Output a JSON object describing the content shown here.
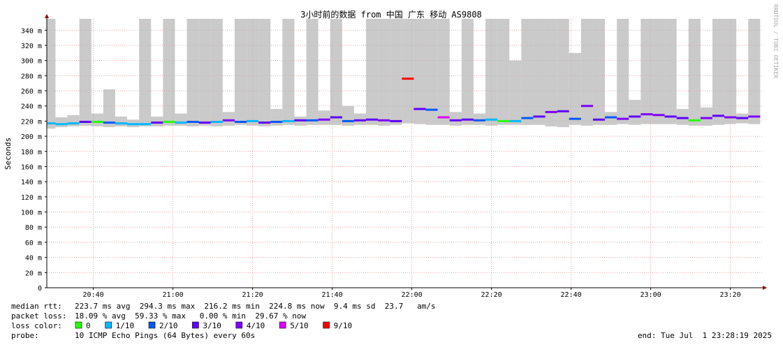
{
  "chart_data": {
    "type": "smoke",
    "title": "3小时前的数据 from 中国 广东 移动 AS9808",
    "y_label": "Seconds",
    "watermark": "RRDTOOL / TOBI OETIKER",
    "xlim": [
      "20:28:19",
      "23:28:19"
    ],
    "xticks": [
      "20:40",
      "21:00",
      "21:20",
      "21:40",
      "22:00",
      "22:20",
      "22:40",
      "23:00",
      "23:20"
    ],
    "ylim": [
      0,
      0.355
    ],
    "yticks": [
      0,
      {
        "value": 0.02,
        "label": "20 m"
      },
      {
        "value": 0.04,
        "label": "40 m"
      },
      {
        "value": 0.06,
        "label": "60 m"
      },
      {
        "value": 0.08,
        "label": "80 m"
      },
      {
        "value": 0.1,
        "label": "100 m"
      },
      {
        "value": 0.12,
        "label": "120 m"
      },
      {
        "value": 0.14,
        "label": "140 m"
      },
      {
        "value": 0.16,
        "label": "160 m"
      },
      {
        "value": 0.18,
        "label": "180 m"
      },
      {
        "value": 0.2,
        "label": "200 m"
      },
      {
        "value": 0.22,
        "label": "220 m"
      },
      {
        "value": 0.24,
        "label": "240 m"
      },
      {
        "value": 0.26,
        "label": "260 m"
      },
      {
        "value": 0.28,
        "label": "280 m"
      },
      {
        "value": 0.3,
        "label": "300 m"
      },
      {
        "value": 0.32,
        "label": "320 m"
      },
      {
        "value": 0.34,
        "label": "340 m"
      }
    ],
    "grid": true,
    "smoke_color": "#b8b8b8",
    "x": [
      "20:29",
      "20:32",
      "20:35",
      "20:38",
      "20:41",
      "20:44",
      "20:47",
      "20:50",
      "20:53",
      "20:56",
      "20:59",
      "21:02",
      "21:05",
      "21:08",
      "21:11",
      "21:14",
      "21:17",
      "21:20",
      "21:23",
      "21:26",
      "21:29",
      "21:32",
      "21:35",
      "21:38",
      "21:41",
      "21:44",
      "21:47",
      "21:50",
      "21:53",
      "21:56",
      "21:59",
      "22:02",
      "22:05",
      "22:08",
      "22:11",
      "22:14",
      "22:17",
      "22:20",
      "22:23",
      "22:26",
      "22:29",
      "22:32",
      "22:35",
      "22:38",
      "22:41",
      "22:44",
      "22:47",
      "22:50",
      "22:53",
      "22:56",
      "22:59",
      "23:02",
      "23:05",
      "23:08",
      "23:11",
      "23:14",
      "23:17",
      "23:20",
      "23:23",
      "23:26"
    ],
    "median": [
      0.217,
      0.216,
      0.217,
      0.219,
      0.219,
      0.218,
      0.217,
      0.216,
      0.216,
      0.218,
      0.219,
      0.218,
      0.219,
      0.218,
      0.219,
      0.221,
      0.219,
      0.22,
      0.218,
      0.219,
      0.22,
      0.221,
      0.221,
      0.222,
      0.225,
      0.22,
      0.221,
      0.222,
      0.221,
      0.22,
      0.276,
      0.236,
      0.235,
      0.225,
      0.221,
      0.222,
      0.221,
      0.222,
      0.22,
      0.22,
      0.224,
      0.226,
      0.232,
      0.233,
      0.223,
      0.24,
      0.222,
      0.225,
      0.223,
      0.226,
      0.229,
      0.228,
      0.226,
      0.224,
      0.221,
      0.224,
      0.227,
      0.225,
      0.224,
      0.226
    ],
    "smoke_min": [
      0.21,
      0.212,
      0.213,
      0.214,
      0.213,
      0.212,
      0.213,
      0.212,
      0.213,
      0.213,
      0.214,
      0.214,
      0.213,
      0.214,
      0.213,
      0.214,
      0.215,
      0.214,
      0.213,
      0.214,
      0.215,
      0.214,
      0.215,
      0.215,
      0.215,
      0.214,
      0.215,
      0.215,
      0.214,
      0.215,
      0.217,
      0.216,
      0.215,
      0.215,
      0.214,
      0.215,
      0.215,
      0.214,
      0.215,
      0.215,
      0.215,
      0.215,
      0.213,
      0.212,
      0.215,
      0.214,
      0.215,
      0.215,
      0.216,
      0.215,
      0.216,
      0.216,
      0.216,
      0.215,
      0.214,
      0.214,
      0.215,
      0.216,
      0.217,
      0.216
    ],
    "smoke_max": [
      0.355,
      0.225,
      0.228,
      0.355,
      0.23,
      0.262,
      0.226,
      0.222,
      0.355,
      0.226,
      0.355,
      0.23,
      0.355,
      0.355,
      0.355,
      0.232,
      0.355,
      0.355,
      0.355,
      0.236,
      0.355,
      0.226,
      0.355,
      0.234,
      0.355,
      0.24,
      0.23,
      0.355,
      0.355,
      0.355,
      0.355,
      0.355,
      0.355,
      0.355,
      0.232,
      0.355,
      0.23,
      0.355,
      0.355,
      0.3,
      0.355,
      0.355,
      0.355,
      0.355,
      0.31,
      0.355,
      0.355,
      0.232,
      0.355,
      0.248,
      0.355,
      0.355,
      0.355,
      0.236,
      0.355,
      0.238,
      0.355,
      0.355,
      0.23,
      0.355
    ],
    "loss": [
      0.1,
      0.1,
      0.1,
      0.3,
      0,
      0.2,
      0.1,
      0.1,
      0.1,
      0.3,
      0,
      0.1,
      0.2,
      0.3,
      0.1,
      0.4,
      0.2,
      0.1,
      0.3,
      0.2,
      0.1,
      0.3,
      0.2,
      0.4,
      0.3,
      0.2,
      0.3,
      0.3,
      0.4,
      0.3,
      0.9,
      0.3,
      0.2,
      0.5,
      0.3,
      0.3,
      0.2,
      0.1,
      0,
      0.1,
      0.2,
      0.3,
      0.4,
      0.3,
      0.2,
      0.4,
      0.3,
      0.2,
      0.4,
      0.3,
      0.4,
      0.4,
      0.3,
      0.3,
      0,
      0.4,
      0.3,
      0.4,
      0.3,
      0.4
    ],
    "loss_legend_label": "loss color:",
    "loss_legend": [
      {
        "value": 0,
        "label": "0",
        "color": "#26ff00"
      },
      {
        "value": 0.1,
        "label": "1/10",
        "color": "#00b8ff"
      },
      {
        "value": 0.2,
        "label": "2/10",
        "color": "#0059ff"
      },
      {
        "value": 0.3,
        "label": "3/10",
        "color": "#5e00ff"
      },
      {
        "value": 0.4,
        "label": "4/10",
        "color": "#7e00ff"
      },
      {
        "value": 0.5,
        "label": "5/10",
        "color": "#dd00ff"
      },
      {
        "value": 0.9,
        "label": "9/10",
        "color": "#ff0000"
      }
    ],
    "stats": [
      {
        "label": "median rtt:",
        "text": "223.7 ms avg  294.3 ms max  216.2 ms min  224.8 ms now  9.4 ms sd  23.7   am/s"
      },
      {
        "label": "packet loss:",
        "text": "18.09 % avg  59.33 % max   0.00 % min  29.67 % now"
      }
    ],
    "probe_label": "probe:",
    "probe": "10 ICMP Echo Pings (64 Bytes) every 60s",
    "end": "end: Tue Jul  1 23:28:19 2025"
  }
}
